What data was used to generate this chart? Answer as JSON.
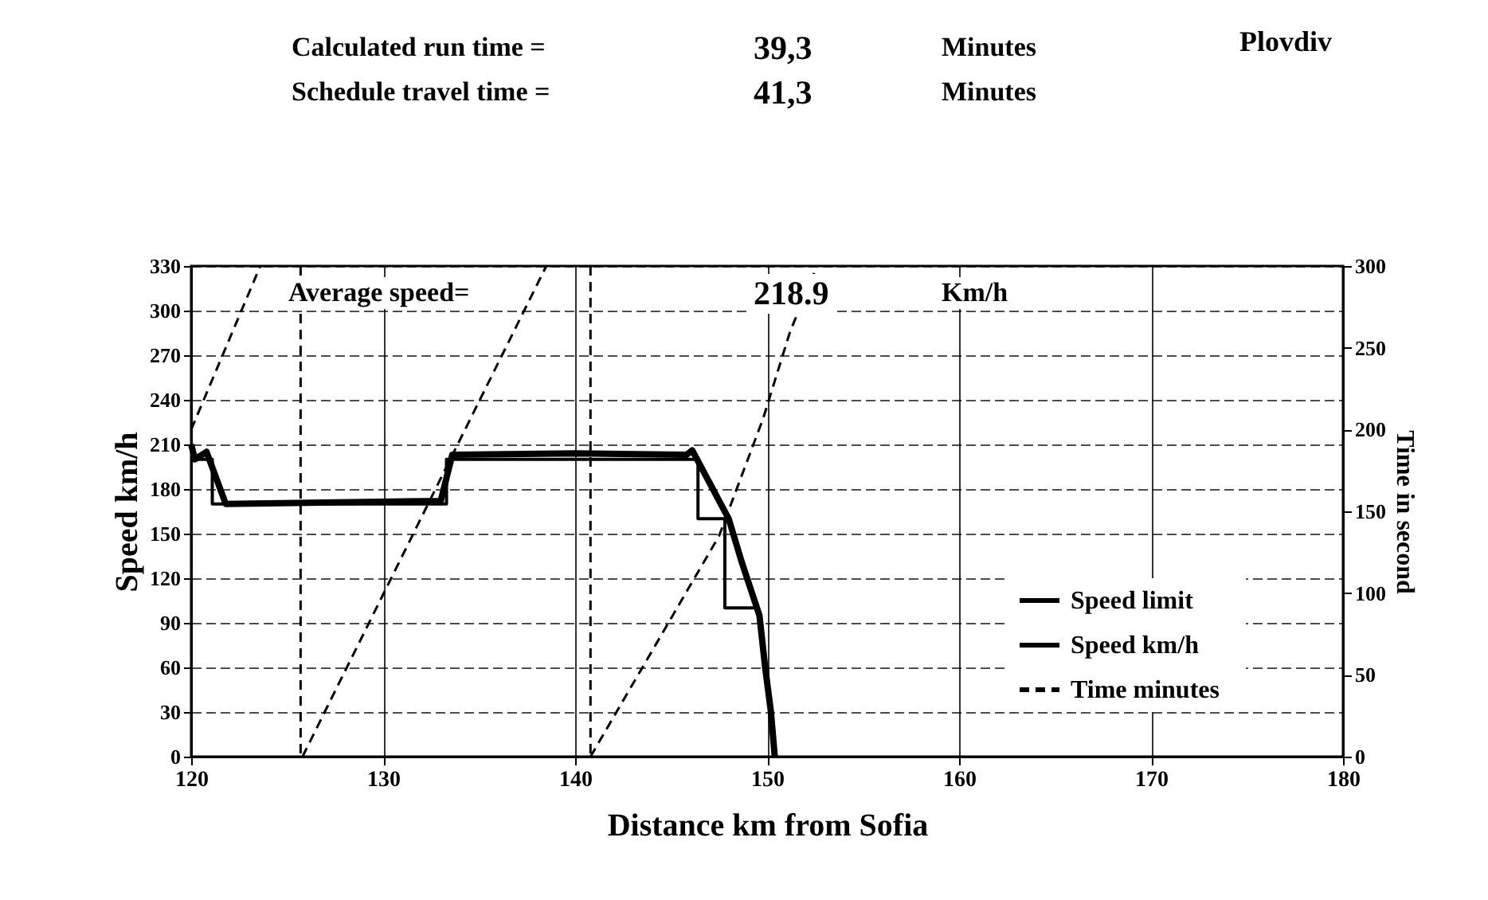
{
  "chart_data": {
    "type": "line",
    "xlabel": "Distance km from Sofia",
    "ylabel": "Speed km/h",
    "y2label": "Time in second",
    "annotations": [
      "Calculated run time =",
      "39,3",
      "Minutes",
      "Schedule travel time =",
      "41,3",
      "Minutes",
      "Average speed=",
      "218.9",
      "Km/h",
      "Plovdiv"
    ],
    "xlim": [
      120,
      180
    ],
    "xticks": [
      120,
      130,
      140,
      150,
      160,
      170,
      180
    ],
    "ylim": [
      0,
      330
    ],
    "yticks": [
      0,
      30,
      60,
      90,
      120,
      150,
      180,
      210,
      240,
      270,
      300,
      330
    ],
    "y2lim": [
      0,
      300
    ],
    "y2ticks": [
      0,
      50,
      100,
      150,
      200,
      250,
      300
    ],
    "grid": true,
    "legend": "bottom right",
    "ref_lines": [
      {
        "axis": "x",
        "value": 125.7,
        "line_style": "dashed",
        "color": "#000000"
      },
      {
        "axis": "x",
        "value": 140.8,
        "line_style": "dashed",
        "color": "#000000"
      }
    ],
    "series": [
      {
        "name": "Speed limit",
        "color": "#000000",
        "line_style": "solid",
        "x": [
          120,
          121.1,
          121.1,
          133.3,
          133.3,
          146.4,
          146.4,
          147.8,
          147.8,
          149.4
        ],
        "values": [
          200,
          200,
          170,
          170,
          200,
          200,
          160,
          160,
          100,
          100
        ]
      },
      {
        "name": "Speed km/h",
        "color": "#000000",
        "line_style": "solid",
        "x": [
          120,
          120.2,
          120.8,
          121.8,
          133.0,
          133.6,
          140,
          145.8,
          146.1,
          148.0,
          148.7,
          149.6,
          149.9,
          150.2,
          150.4
        ],
        "values": [
          210,
          200,
          205,
          170,
          172,
          203,
          204,
          203,
          206,
          160,
          130,
          95,
          60,
          30,
          0
        ]
      },
      {
        "name": "Time minutes",
        "color": "#000000",
        "line_style": "dashed",
        "axis": "y2",
        "x": [
          120,
          123.6,
          124.7,
          125.8,
          138.5,
          139.7,
          140.8,
          147.5,
          149.8,
          151.2,
          152.6
        ],
        "values": [
          200,
          300,
          null,
          0,
          300,
          null,
          0,
          135,
          207,
          260,
          300
        ]
      }
    ]
  }
}
